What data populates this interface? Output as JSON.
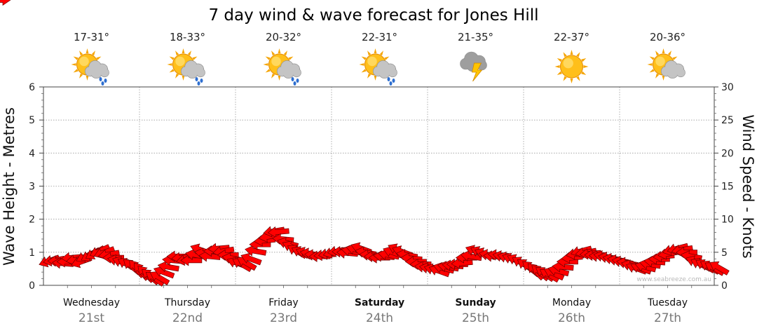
{
  "chart_data": {
    "type": "line",
    "title": "7 day wind & wave forecast for Jones Hill",
    "ylabel": "Wave Height - Metres",
    "y2label": "Wind Speed - Knots",
    "ylim": [
      0,
      6
    ],
    "y2lim": [
      0,
      30
    ],
    "yticks": [
      "0",
      "1",
      "2",
      "3",
      "4",
      "5",
      "6"
    ],
    "y2ticks": [
      "0",
      "5",
      "10",
      "15",
      "20",
      "25",
      "30"
    ],
    "grid": true,
    "days": [
      {
        "day": "Wednesday",
        "date": "21st",
        "temp": "17-31°",
        "icon": "sun-cloud-rain-icon",
        "bold": false
      },
      {
        "day": "Thursday",
        "date": "22nd",
        "temp": "18-33°",
        "icon": "sun-cloud-rain-icon",
        "bold": false
      },
      {
        "day": "Friday",
        "date": "23rd",
        "temp": "20-32°",
        "icon": "sun-cloud-rain-icon",
        "bold": false
      },
      {
        "day": "Saturday",
        "date": "24th",
        "temp": "22-31°",
        "icon": "sun-cloud-rain-icon",
        "bold": true
      },
      {
        "day": "Sunday",
        "date": "25th",
        "temp": "21-35°",
        "icon": "storm-icon",
        "bold": true
      },
      {
        "day": "Monday",
        "date": "26th",
        "temp": "22-37°",
        "icon": "sun-icon",
        "bold": false
      },
      {
        "day": "Tuesday",
        "date": "27th",
        "temp": "20-36°",
        "icon": "sun-cloud-icon",
        "bold": false
      }
    ],
    "series": [
      {
        "name": "Wind Speed",
        "unit": "knots",
        "values": [
          4.5,
          4.8,
          4.2,
          3.8,
          4.0,
          4.6,
          4.3,
          4.0,
          4.8,
          5.0,
          5.3,
          5.6,
          5.4,
          5.1,
          4.6,
          4.2,
          3.9,
          3.6,
          3.3,
          3.0,
          2.6,
          2.2,
          1.8,
          1.5,
          1.6,
          2.4,
          3.2,
          4.2,
          4.8,
          4.6,
          4.3,
          4.2,
          5.0,
          5.8,
          5.2,
          4.8,
          5.6,
          6.0,
          5.6,
          5.0,
          4.5,
          3.8,
          3.6,
          3.8,
          4.4,
          5.6,
          6.6,
          7.2,
          7.8,
          8.6,
          8.5,
          7.4,
          6.8,
          6.2,
          5.6,
          5.4,
          5.3,
          5.2,
          5.0,
          4.8,
          5.0,
          5.2,
          5.4,
          5.6,
          5.5,
          5.3,
          5.6,
          5.8,
          6.0,
          5.4,
          5.0,
          4.8,
          4.6,
          4.8,
          5.0,
          5.4,
          5.8,
          5.5,
          5.0,
          4.5,
          4.0,
          3.6,
          3.2,
          3.0,
          2.8,
          2.6,
          3.0,
          3.2,
          3.4,
          3.6,
          3.8,
          4.6,
          4.8,
          5.6,
          5.4,
          5.2,
          5.0,
          4.8,
          5.0,
          4.8,
          4.6,
          4.4,
          4.2,
          3.8,
          3.4,
          3.0,
          2.6,
          2.4,
          2.2,
          2.0,
          2.2,
          2.6,
          3.2,
          4.0,
          4.6,
          5.2,
          5.6,
          5.4,
          5.2,
          5.0,
          4.8,
          4.8,
          4.6,
          4.4,
          4.2,
          4.0,
          3.8,
          3.4,
          3.0,
          3.0,
          3.2,
          3.6,
          4.0,
          4.4,
          4.8,
          5.2,
          5.8,
          6.0,
          5.8,
          5.4,
          4.8,
          4.0,
          3.6,
          3.4,
          3.2,
          3.0,
          3.1,
          3.2
        ]
      },
      {
        "name": "Wind Direction",
        "unit": "degrees",
        "values": [
          70,
          80,
          90,
          95,
          90,
          85,
          80,
          70,
          65,
          60,
          60,
          65,
          70,
          80,
          90,
          100,
          110,
          120,
          130,
          140,
          140,
          135,
          130,
          125,
          120,
          110,
          100,
          95,
          90,
          85,
          80,
          90,
          100,
          110,
          100,
          95,
          90,
          85,
          80,
          90,
          100,
          110,
          120,
          120,
          110,
          100,
          90,
          85,
          80,
          80,
          85,
          95,
          105,
          115,
          120,
          115,
          110,
          100,
          95,
          90,
          85,
          80,
          75,
          80,
          90,
          95,
          100,
          105,
          110,
          100,
          95,
          90,
          90,
          95,
          100,
          110,
          115,
          110,
          100,
          95,
          90,
          90,
          95,
          100,
          105,
          110,
          105,
          100,
          95,
          90,
          85,
          90,
          100,
          110,
          115,
          110,
          100,
          95,
          95,
          100,
          105,
          110,
          115,
          120,
          125,
          130,
          135,
          130,
          125,
          120,
          115,
          105,
          95,
          90,
          85,
          80,
          75,
          80,
          85,
          90,
          95,
          100,
          100,
          100,
          100,
          100,
          100,
          105,
          110,
          110,
          105,
          100,
          95,
          90,
          85,
          80,
          75,
          75,
          80,
          90,
          100,
          110,
          115,
          120,
          120,
          120,
          120
        ]
      },
      {
        "name": "Wave Height",
        "unit": "metres",
        "values": [
          0.82,
          0.84,
          0.82,
          0.75,
          0.8,
          0.92,
          0.86,
          0.8,
          0.96,
          1.0,
          1.06,
          1.12,
          1.08,
          1.02,
          0.92,
          0.84,
          0.78,
          0.72,
          0.66,
          0.6,
          0.52,
          0.44,
          0.36,
          0.3,
          0.32,
          0.48,
          0.64,
          0.84,
          0.96,
          0.92,
          0.86,
          0.84,
          1.0,
          1.16,
          1.04,
          0.96,
          1.12,
          1.2,
          1.12,
          1.0,
          0.9,
          0.76,
          0.72,
          0.76,
          0.88,
          1.12,
          1.32,
          1.44,
          1.56,
          1.72,
          1.7,
          1.48,
          1.36,
          1.24,
          1.12,
          1.08,
          1.06,
          1.04,
          1.0,
          0.96,
          1.0,
          1.04,
          1.08,
          1.12,
          1.1,
          1.06,
          1.12,
          1.16,
          1.2,
          1.08,
          1.0,
          0.96,
          0.92,
          0.96,
          1.0,
          1.08,
          1.16,
          1.1,
          1.0,
          0.9,
          0.8,
          0.72,
          0.64,
          0.6,
          0.56,
          0.52,
          0.6,
          0.64,
          0.68,
          0.72,
          0.76,
          0.92,
          0.96,
          1.12,
          1.08,
          1.04,
          1.0,
          0.96,
          1.0,
          0.96,
          0.92,
          0.88,
          0.84,
          0.76,
          0.68,
          0.6,
          0.52,
          0.48,
          0.44,
          0.4,
          0.44,
          0.52,
          0.64,
          0.8,
          0.92,
          1.04,
          1.12,
          1.08,
          1.04,
          1.0,
          0.96,
          0.96,
          0.92,
          0.88,
          0.84,
          0.8,
          0.76,
          0.68,
          0.6,
          0.6,
          0.64,
          0.72,
          0.8,
          0.88,
          0.96,
          1.04,
          1.16,
          1.2,
          1.16,
          1.08,
          0.96,
          0.8,
          0.72,
          0.68,
          0.64,
          0.6,
          0.62,
          0.64
        ]
      }
    ]
  }
}
